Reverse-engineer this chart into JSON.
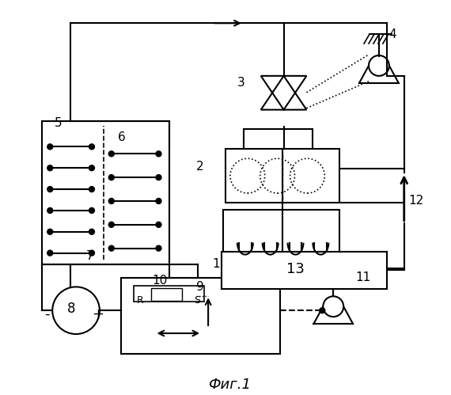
{
  "title": "Фиг.1",
  "background_color": "#ffffff",
  "line_color": "#000000",
  "fig_width": 5.7,
  "fig_height": 4.99,
  "dpi": 100
}
